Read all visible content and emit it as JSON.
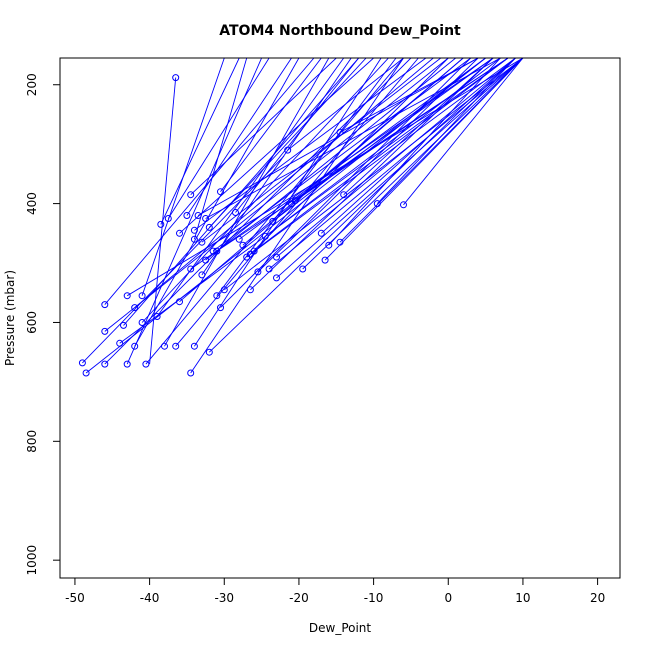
{
  "chart_data": {
    "type": "line",
    "title": "ATOM4 Northbound Dew_Point",
    "xlabel": "Dew_Point",
    "ylabel": "Pressure (mbar)",
    "xlim": [
      -52,
      23
    ],
    "ylim": [
      1030,
      155
    ],
    "y_reversed": true,
    "grid": false,
    "line_color": "#0000ff",
    "marker": "open-circle",
    "x_ticks": [
      -50,
      -40,
      -30,
      -20,
      -10,
      0,
      10,
      20
    ],
    "x_tick_labels": [
      "-50",
      "-40",
      "-30",
      "-20",
      "-10",
      "0",
      "10",
      "20"
    ],
    "y_ticks": [
      200,
      400,
      600,
      800,
      1000
    ],
    "y_tick_labels": [
      "200",
      "400",
      "600",
      "800",
      "1000"
    ],
    "series": [
      {
        "x": [
          -36.5,
          -40
        ],
        "y": [
          188,
          670
        ]
      },
      {
        "x": [
          -49,
          -22
        ],
        "y": [
          668,
          320
        ]
      },
      {
        "x": [
          -48.5,
          5
        ],
        "y": [
          685,
          155
        ]
      },
      {
        "x": [
          -46,
          -18
        ],
        "y": [
          570,
          155
        ]
      },
      {
        "x": [
          -46,
          -5
        ],
        "y": [
          670,
          155
        ]
      },
      {
        "x": [
          -46,
          0
        ],
        "y": [
          615,
          155
        ]
      },
      {
        "x": [
          -44,
          8
        ],
        "y": [
          635,
          155
        ]
      },
      {
        "x": [
          -43.5,
          -12
        ],
        "y": [
          605,
          155
        ]
      },
      {
        "x": [
          -43,
          -25
        ],
        "y": [
          670,
          155
        ]
      },
      {
        "x": [
          -43,
          10
        ],
        "y": [
          555,
          155
        ]
      },
      {
        "x": [
          -42,
          -20
        ],
        "y": [
          640,
          155
        ]
      },
      {
        "x": [
          -42,
          -2
        ],
        "y": [
          575,
          155
        ]
      },
      {
        "x": [
          -41,
          -30
        ],
        "y": [
          555,
          155
        ]
      },
      {
        "x": [
          -41,
          -8
        ],
        "y": [
          600,
          155
        ]
      },
      {
        "x": [
          -40.5,
          -6
        ],
        "y": [
          670,
          155
        ]
      },
      {
        "x": [
          -39,
          -14
        ],
        "y": [
          590,
          155
        ]
      },
      {
        "x": [
          -38.5,
          -28
        ],
        "y": [
          435,
          155
        ]
      },
      {
        "x": [
          -38,
          -16
        ],
        "y": [
          640,
          155
        ]
      },
      {
        "x": [
          -37.5,
          -24
        ],
        "y": [
          425,
          155
        ]
      },
      {
        "x": [
          -36.5,
          -4
        ],
        "y": [
          640,
          155
        ]
      },
      {
        "x": [
          -36,
          2
        ],
        "y": [
          565,
          155
        ]
      },
      {
        "x": [
          -36,
          -10
        ],
        "y": [
          450,
          155
        ]
      },
      {
        "x": [
          -35,
          -21
        ],
        "y": [
          420,
          155
        ]
      },
      {
        "x": [
          -34.5,
          -15
        ],
        "y": [
          385,
          155
        ]
      },
      {
        "x": [
          -34.5,
          6
        ],
        "y": [
          510,
          155
        ]
      },
      {
        "x": [
          -34.5,
          -6
        ],
        "y": [
          685,
          155
        ]
      },
      {
        "x": [
          -34,
          -27
        ],
        "y": [
          460,
          155
        ]
      },
      {
        "x": [
          -34,
          -9
        ],
        "y": [
          640,
          155
        ]
      },
      {
        "x": [
          -34,
          -3
        ],
        "y": [
          445,
          155
        ]
      },
      {
        "x": [
          -33.5,
          4
        ],
        "y": [
          420,
          155
        ]
      },
      {
        "x": [
          -33,
          -13
        ],
        "y": [
          520,
          155
        ]
      },
      {
        "x": [
          -33,
          -1
        ],
        "y": [
          465,
          155
        ]
      },
      {
        "x": [
          -32.5,
          7
        ],
        "y": [
          425,
          155
        ]
      },
      {
        "x": [
          -32.5,
          1
        ],
        "y": [
          495,
          155
        ]
      },
      {
        "x": [
          -32,
          9
        ],
        "y": [
          650,
          155
        ]
      },
      {
        "x": [
          -32,
          -11
        ],
        "y": [
          440,
          155
        ]
      },
      {
        "x": [
          -31.5,
          3
        ],
        "y": [
          480,
          155
        ]
      },
      {
        "x": [
          -31,
          -7
        ],
        "y": [
          555,
          155
        ]
      },
      {
        "x": [
          -31,
          8
        ],
        "y": [
          480,
          155
        ]
      },
      {
        "x": [
          -30.5,
          -17
        ],
        "y": [
          380,
          155
        ]
      },
      {
        "x": [
          -30.5,
          3
        ],
        "y": [
          575,
          155
        ]
      },
      {
        "x": [
          -30,
          10
        ],
        "y": [
          545,
          155
        ]
      },
      {
        "x": [
          -28.5,
          -12
        ],
        "y": [
          415,
          155
        ]
      },
      {
        "x": [
          -28,
          5
        ],
        "y": [
          460,
          155
        ]
      },
      {
        "x": [
          -27.5,
          2
        ],
        "y": [
          470,
          155
        ]
      },
      {
        "x": [
          -27,
          9
        ],
        "y": [
          490,
          155
        ]
      },
      {
        "x": [
          -26.5,
          0
        ],
        "y": [
          485,
          155
        ]
      },
      {
        "x": [
          -26.5,
          6
        ],
        "y": [
          545,
          155
        ]
      },
      {
        "x": [
          -26,
          8
        ],
        "y": [
          480,
          155
        ]
      },
      {
        "x": [
          -25.5,
          4
        ],
        "y": [
          515,
          155
        ]
      },
      {
        "x": [
          -24.5,
          7
        ],
        "y": [
          455,
          155
        ]
      },
      {
        "x": [
          -24,
          10
        ],
        "y": [
          510,
          155
        ]
      },
      {
        "x": [
          -23.5,
          5
        ],
        "y": [
          430,
          155
        ]
      },
      {
        "x": [
          -23,
          9
        ],
        "y": [
          490,
          155
        ]
      },
      {
        "x": [
          -23,
          10
        ],
        "y": [
          525,
          155
        ]
      },
      {
        "x": [
          -21.5,
          -6
        ],
        "y": [
          310,
          155
        ]
      },
      {
        "x": [
          -21,
          6
        ],
        "y": [
          400,
          155
        ]
      },
      {
        "x": [
          -20.5,
          8
        ],
        "y": [
          395,
          155
        ]
      },
      {
        "x": [
          -19.5,
          10
        ],
        "y": [
          510,
          155
        ]
      },
      {
        "x": [
          -17,
          9
        ],
        "y": [
          450,
          155
        ]
      },
      {
        "x": [
          -16.5,
          10
        ],
        "y": [
          495,
          155
        ]
      },
      {
        "x": [
          -16,
          7
        ],
        "y": [
          470,
          155
        ]
      },
      {
        "x": [
          -14.5,
          4
        ],
        "y": [
          280,
          155
        ]
      },
      {
        "x": [
          -14.5,
          10
        ],
        "y": [
          465,
          155
        ]
      },
      {
        "x": [
          -14,
          6
        ],
        "y": [
          385,
          155
        ]
      },
      {
        "x": [
          -9.5,
          9
        ],
        "y": [
          400,
          155
        ]
      },
      {
        "x": [
          -6,
          10
        ],
        "y": [
          402,
          155
        ]
      }
    ]
  }
}
